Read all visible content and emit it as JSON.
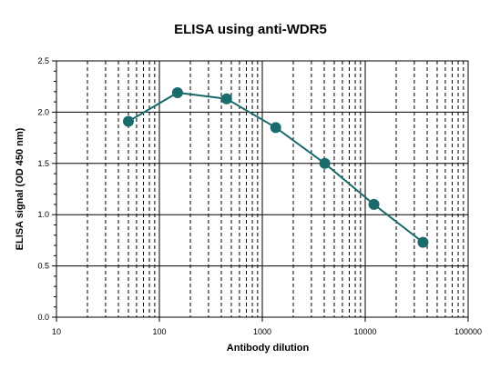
{
  "chart_data": {
    "type": "line",
    "title": "ELISA using anti-WDR5",
    "xlabel": "Antibody  dilution",
    "ylabel": "ELISA  signal (OD 450 nm)",
    "xscale": "log",
    "xlim": [
      10,
      100000
    ],
    "ylim": [
      0,
      2.5
    ],
    "x_ticks": [
      "10",
      "100",
      "1000",
      "10000",
      "100000"
    ],
    "y_ticks": [
      "0.0",
      "0.5",
      "1.0",
      "1.5",
      "2.0",
      "2.5"
    ],
    "grid": true,
    "legend": "none",
    "series": [
      {
        "x": [
          50,
          150,
          450,
          1350,
          4050,
          12150,
          36450
        ],
        "y": [
          1.91,
          2.19,
          2.13,
          1.85,
          1.5,
          1.1,
          0.73
        ],
        "color": "#1a6b6b",
        "marker": "circle"
      }
    ]
  }
}
